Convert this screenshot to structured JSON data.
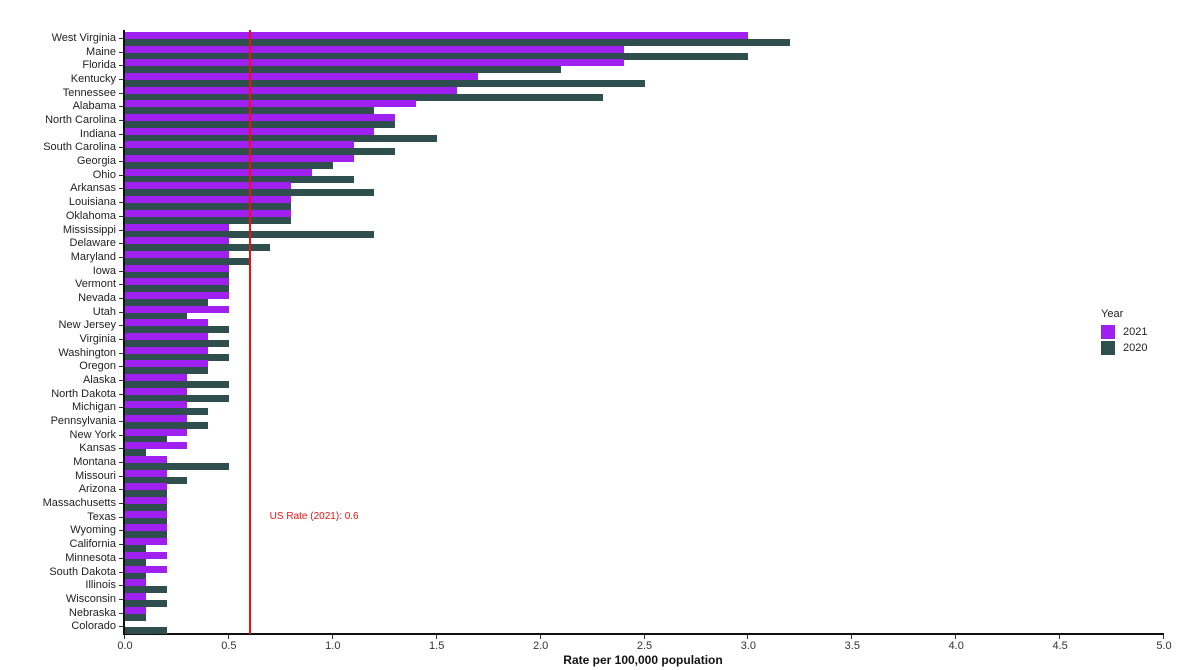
{
  "chart_data": {
    "type": "bar",
    "orientation": "horizontal",
    "title": "",
    "xlabel": "Rate per 100,000 population",
    "ylabel": "",
    "xlim": [
      0,
      5.0
    ],
    "xticks": [
      "0.0",
      "0.5",
      "1.0",
      "1.5",
      "2.0",
      "2.5",
      "3.0",
      "3.5",
      "4.0",
      "4.5",
      "5.0"
    ],
    "grid": false,
    "legend": {
      "title": "Year",
      "position": "right",
      "entries": [
        "2021",
        "2020"
      ]
    },
    "colors": {
      "2021": "#a020f0",
      "2020": "#2f4f4f",
      "reference": "#ee1111"
    },
    "reference_line": {
      "value": 0.6,
      "label": "US Rate (2021): 0.6"
    },
    "categories": [
      "West Virginia",
      "Maine",
      "Florida",
      "Kentucky",
      "Tennessee",
      "Alabama",
      "North Carolina",
      "Indiana",
      "South Carolina",
      "Georgia",
      "Ohio",
      "Arkansas",
      "Louisiana",
      "Oklahoma",
      "Mississippi",
      "Delaware",
      "Maryland",
      "Iowa",
      "Vermont",
      "Nevada",
      "Utah",
      "New Jersey",
      "Virginia",
      "Washington",
      "Oregon",
      "Alaska",
      "North Dakota",
      "Michigan",
      "Pennsylvania",
      "New York",
      "Kansas",
      "Montana",
      "Missouri",
      "Arizona",
      "Massachusetts",
      "Texas",
      "Wyoming",
      "California",
      "Minnesota",
      "South Dakota",
      "Illinois",
      "Wisconsin",
      "Nebraska",
      "Colorado"
    ],
    "series": [
      {
        "name": "2021",
        "values": [
          3.0,
          2.4,
          2.4,
          1.7,
          1.6,
          1.4,
          1.3,
          1.2,
          1.1,
          1.1,
          0.9,
          0.8,
          0.8,
          0.8,
          0.5,
          0.5,
          0.5,
          0.5,
          0.5,
          0.5,
          0.5,
          0.4,
          0.4,
          0.4,
          0.4,
          0.3,
          0.3,
          0.3,
          0.3,
          0.3,
          0.3,
          0.2,
          0.2,
          0.2,
          0.2,
          0.2,
          0.2,
          0.2,
          0.2,
          0.2,
          0.1,
          0.1,
          0.1,
          0.0
        ]
      },
      {
        "name": "2020",
        "values": [
          3.2,
          3.0,
          2.1,
          2.5,
          2.3,
          1.2,
          1.3,
          1.5,
          1.3,
          1.0,
          1.1,
          1.2,
          0.8,
          0.8,
          1.2,
          0.7,
          0.6,
          0.5,
          0.5,
          0.4,
          0.3,
          0.5,
          0.5,
          0.5,
          0.4,
          0.5,
          0.5,
          0.4,
          0.4,
          0.2,
          0.1,
          0.5,
          0.3,
          0.2,
          0.2,
          0.2,
          0.2,
          0.1,
          0.1,
          0.1,
          0.2,
          0.2,
          0.1,
          0.2
        ]
      }
    ]
  },
  "axis": {
    "x_title": "Rate per 100,000 population"
  },
  "legend": {
    "title": "Year",
    "items": [
      {
        "label": "2021",
        "color": "#a020f0"
      },
      {
        "label": "2020",
        "color": "#2f4f4f"
      }
    ]
  },
  "reference": {
    "label": "US Rate (2021): 0.6"
  }
}
